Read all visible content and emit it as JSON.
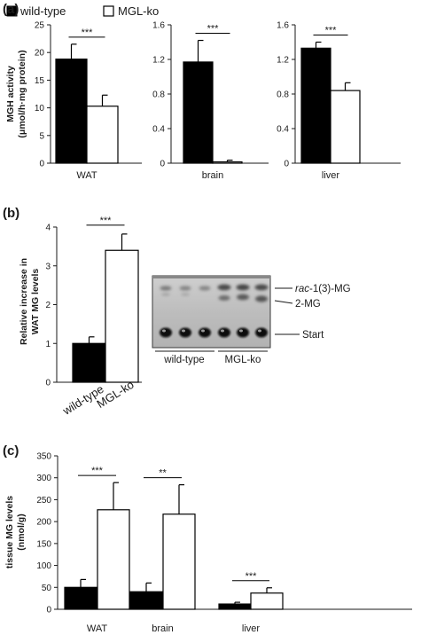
{
  "legend": {
    "wild_type": "wild-type",
    "mgl_ko": "MGL-ko"
  },
  "colors": {
    "wild_type": "#000000",
    "mgl_ko": "#ffffff",
    "axis": "#1a1a1a"
  },
  "panels": {
    "a": "(a)",
    "b": "(b)",
    "c": "(c)"
  },
  "chart_data": [
    {
      "id": "a-wat",
      "type": "bar",
      "ylabel_lines": [
        "MGH activity",
        "(μmol/h·mg protein)"
      ],
      "categories": [
        "WAT"
      ],
      "ylim": [
        0,
        25
      ],
      "yticks": [
        0,
        5,
        10,
        15,
        20,
        25
      ],
      "series": [
        {
          "name": "wild-type",
          "values": [
            18.8
          ],
          "errors": [
            2.7
          ]
        },
        {
          "name": "MGL-ko",
          "values": [
            10.3
          ],
          "errors": [
            2.0
          ]
        }
      ],
      "annotations": [
        {
          "text": "***",
          "category": "WAT"
        }
      ]
    },
    {
      "id": "a-brain",
      "type": "bar",
      "categories": [
        "brain"
      ],
      "ylim": [
        0,
        1.6
      ],
      "yticks": [
        "0",
        "0.4",
        "0.8",
        "1.2",
        "1.6"
      ],
      "series": [
        {
          "name": "wild-type",
          "values": [
            1.17
          ],
          "errors": [
            0.25
          ]
        },
        {
          "name": "MGL-ko",
          "values": [
            0.015
          ],
          "errors": [
            0.02
          ]
        }
      ],
      "annotations": [
        {
          "text": "***",
          "category": "brain"
        }
      ]
    },
    {
      "id": "a-liver",
      "type": "bar",
      "categories": [
        "liver"
      ],
      "ylim": [
        0,
        1.6
      ],
      "yticks": [
        "0",
        "0.4",
        "0.8",
        "1.2",
        "1.6"
      ],
      "series": [
        {
          "name": "wild-type",
          "values": [
            1.33
          ],
          "errors": [
            0.07
          ]
        },
        {
          "name": "MGL-ko",
          "values": [
            0.84
          ],
          "errors": [
            0.09
          ]
        }
      ],
      "annotations": [
        {
          "text": "***",
          "category": "liver"
        }
      ]
    },
    {
      "id": "b",
      "type": "bar",
      "ylabel_lines": [
        "Relative increase in",
        "WAT MG levels"
      ],
      "categories": [
        "wild-type",
        "MGL-ko"
      ],
      "ylim": [
        0,
        4
      ],
      "yticks": [
        0,
        1,
        2,
        3,
        4
      ],
      "values": [
        1.0,
        3.4
      ],
      "errors": [
        0.17,
        0.42
      ],
      "annotations": [
        {
          "text": "***"
        }
      ]
    },
    {
      "id": "c",
      "type": "bar",
      "ylabel_lines": [
        "tissue MG levels",
        "(nmol/g)"
      ],
      "categories": [
        "WAT",
        "brain",
        "liver"
      ],
      "ylim": [
        0,
        350
      ],
      "yticks": [
        0,
        50,
        100,
        150,
        200,
        250,
        300,
        350
      ],
      "series": [
        {
          "name": "wild-type",
          "values": [
            50,
            40,
            12
          ],
          "errors": [
            18,
            20,
            4
          ]
        },
        {
          "name": "MGL-ko",
          "values": [
            227,
            217,
            37
          ],
          "errors": [
            62,
            67,
            12
          ]
        }
      ],
      "annotations": [
        {
          "text": "***",
          "category": "WAT"
        },
        {
          "text": "**",
          "category": "brain"
        },
        {
          "text": "***",
          "category": "liver"
        }
      ]
    }
  ],
  "blot": {
    "band_labels": {
      "rac_italic": "rac",
      "rac_rest": "-1(3)-MG",
      "two_mg": "2-MG",
      "start": "Start"
    },
    "lane_groups": [
      "wild-type",
      "MGL-ko"
    ]
  }
}
